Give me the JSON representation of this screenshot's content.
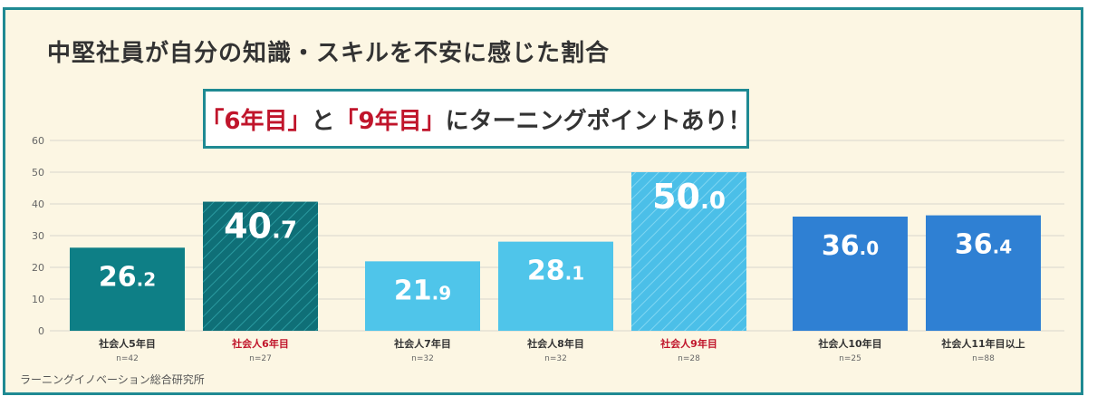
{
  "title": "中堅社員が自分の知識・スキルを不安に感じた割合",
  "callout": {
    "part1": "「6年目」",
    "part2": "と",
    "part3": "「9年目」",
    "part4": "にターニングポイントあり！"
  },
  "source": "ラーニングイノベーション総合研究所",
  "colors": {
    "border": "#1f8a93",
    "background": "#fcf6e3",
    "highlight_text": "#c0152b",
    "dark_teal": "#0e7f86",
    "dark_teal_hatched": "#16757d",
    "light_blue": "#4fc5ea",
    "light_blue_hatched": "#49c0e8",
    "blue": "#2f80d3"
  },
  "chart_data": {
    "type": "bar",
    "title": "中堅社員が自分の知識・スキルを不安に感じた割合",
    "categories": [
      "社会人5年目",
      "社会人6年目",
      "社会人7年目",
      "社会人8年目",
      "社会人9年目",
      "社会人10年目",
      "社会人11年目以上"
    ],
    "sample_sizes": [
      "n=42",
      "n=27",
      "n=32",
      "n=32",
      "n=28",
      "n=25",
      "n=88"
    ],
    "values": [
      26.2,
      40.7,
      21.9,
      28.1,
      50.0,
      36.0,
      36.4
    ],
    "value_labels": [
      {
        "int": "26",
        "dec": ".2"
      },
      {
        "int": "40",
        "dec": ".7"
      },
      {
        "int": "21",
        "dec": ".9"
      },
      {
        "int": "28",
        "dec": ".1"
      },
      {
        "int": "50",
        "dec": ".0"
      },
      {
        "int": "36",
        "dec": ".0"
      },
      {
        "int": "36",
        "dec": ".4"
      }
    ],
    "highlighted": [
      false,
      true,
      false,
      false,
      true,
      false,
      false
    ],
    "bar_colors": [
      "#0e7f86",
      "#16757d",
      "#4fc5ea",
      "#4fc5ea",
      "#49c0e8",
      "#2f80d3",
      "#2f80d3"
    ],
    "yticks": [
      0,
      10,
      20,
      30,
      40,
      50,
      60
    ],
    "ylim": [
      0,
      60
    ],
    "xlabel": "",
    "ylabel": "",
    "grid": true
  }
}
